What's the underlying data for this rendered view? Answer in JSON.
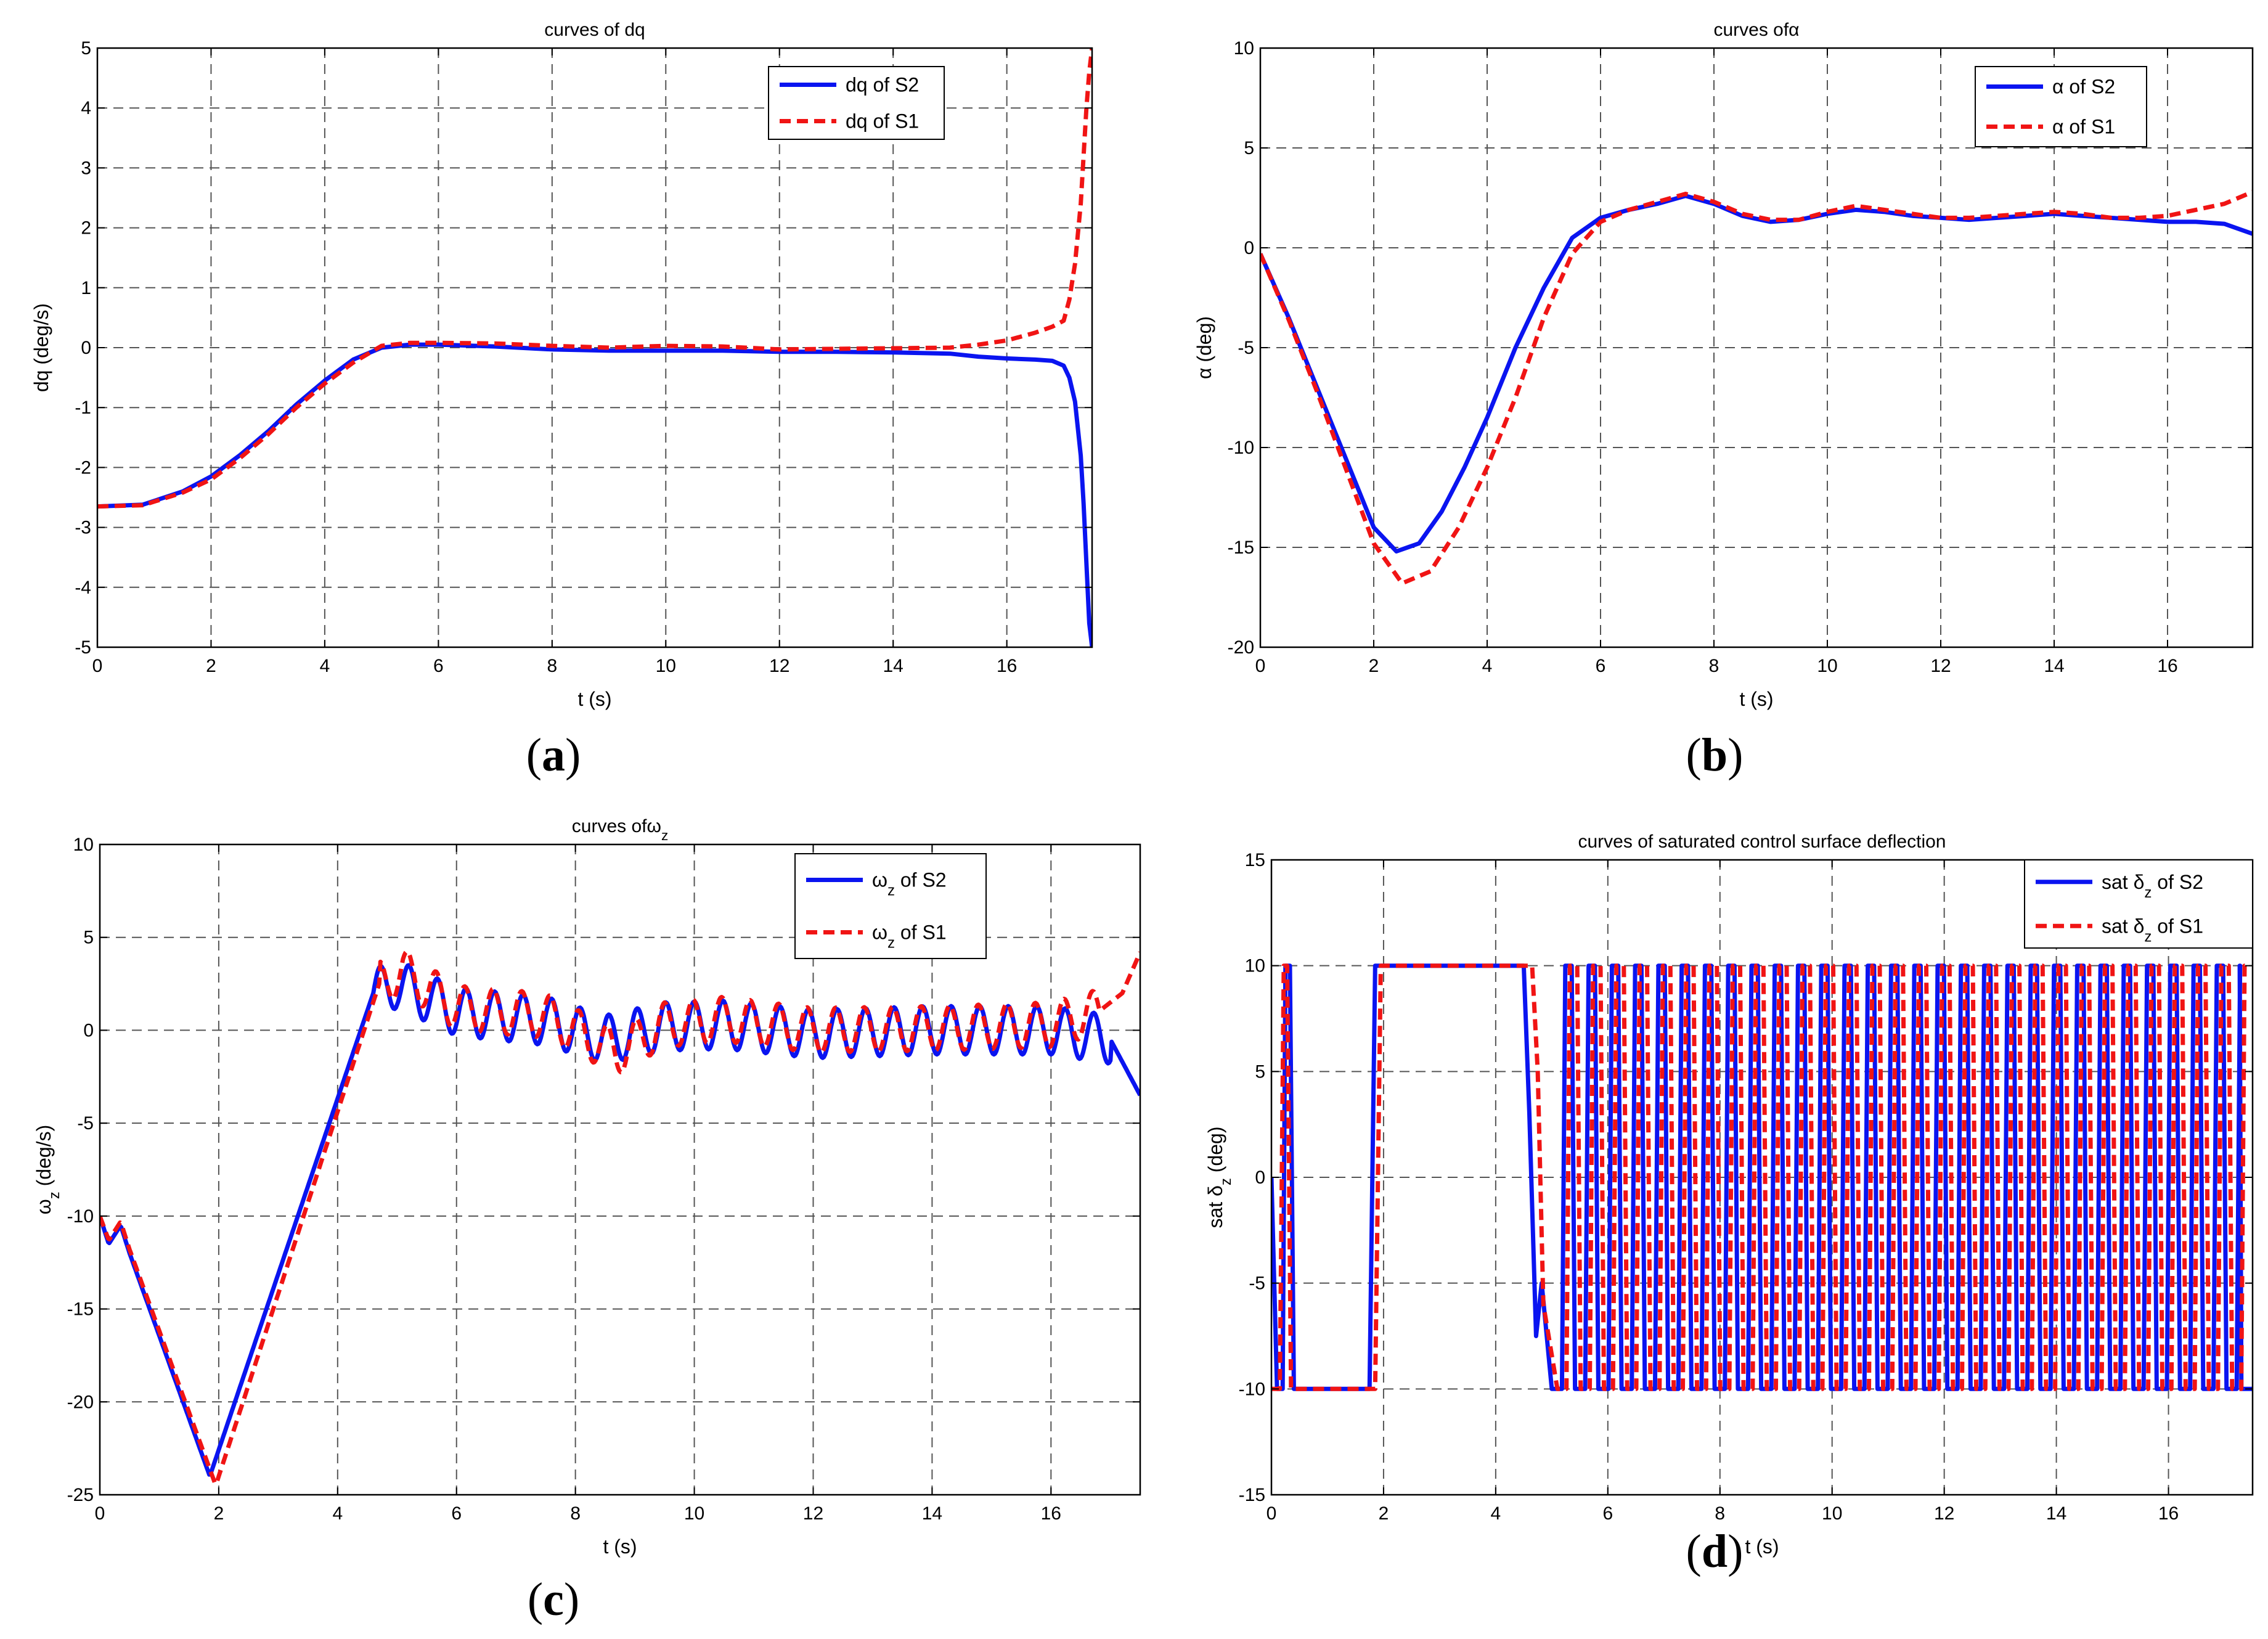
{
  "colors": {
    "s2": "#0a14f0",
    "s1": "#f01414",
    "grid": "#555555",
    "axis": "#000000"
  },
  "chart_data": [
    {
      "id": "a",
      "panel_label": "a",
      "type": "line",
      "title": "curves of dq",
      "xlabel": "t (s)",
      "ylabel": "dq (deg/s)",
      "xlim": [
        0,
        17.5
      ],
      "ylim": [
        -5,
        5
      ],
      "xticks": [
        0,
        2,
        4,
        6,
        8,
        10,
        12,
        14,
        16
      ],
      "yticks": [
        -5,
        -4,
        -3,
        -2,
        -1,
        0,
        1,
        2,
        3,
        4,
        5
      ],
      "legend_position": "top-right",
      "series": [
        {
          "name": "dq of S2",
          "style": "solid",
          "color_key": "s2",
          "x": [
            0,
            0.8,
            1.5,
            2,
            2.5,
            3,
            3.5,
            4,
            4.5,
            5,
            5.5,
            6,
            7,
            8,
            9,
            10,
            11,
            12,
            13,
            14,
            15,
            15.5,
            16,
            16.5,
            16.8,
            17,
            17.1,
            17.2,
            17.3,
            17.35,
            17.4,
            17.45,
            17.5
          ],
          "y": [
            -2.65,
            -2.62,
            -2.4,
            -2.15,
            -1.8,
            -1.4,
            -0.95,
            -0.55,
            -0.2,
            0.0,
            0.05,
            0.05,
            0.02,
            -0.03,
            -0.05,
            -0.05,
            -0.05,
            -0.07,
            -0.07,
            -0.08,
            -0.1,
            -0.15,
            -0.18,
            -0.2,
            -0.22,
            -0.3,
            -0.5,
            -0.9,
            -1.8,
            -2.6,
            -3.6,
            -4.6,
            -5
          ]
        },
        {
          "name": "dq of S1",
          "style": "dashed",
          "color_key": "s1",
          "x": [
            0,
            0.8,
            1.5,
            2,
            2.5,
            3,
            3.5,
            4,
            4.5,
            5,
            5.5,
            6,
            7,
            8,
            9,
            10,
            11,
            12,
            13,
            14,
            15,
            15.5,
            16,
            16.5,
            16.8,
            17,
            17.1,
            17.2,
            17.3,
            17.35,
            17.4,
            17.45,
            17.5
          ],
          "y": [
            -2.65,
            -2.63,
            -2.42,
            -2.2,
            -1.85,
            -1.45,
            -1.0,
            -0.6,
            -0.25,
            0.03,
            0.08,
            0.08,
            0.07,
            0.03,
            0.0,
            0.03,
            0.02,
            -0.03,
            -0.02,
            -0.01,
            0.0,
            0.05,
            0.12,
            0.25,
            0.35,
            0.45,
            0.8,
            1.4,
            2.4,
            3.2,
            4.0,
            4.6,
            5
          ]
        }
      ]
    },
    {
      "id": "b",
      "panel_label": "b",
      "type": "line",
      "title": "curves ofα",
      "xlabel": "t (s)",
      "ylabel": "α (deg)",
      "xlim": [
        0,
        17.5
      ],
      "ylim": [
        -20,
        10
      ],
      "xticks": [
        0,
        2,
        4,
        6,
        8,
        10,
        12,
        14,
        16
      ],
      "yticks": [
        -20,
        -15,
        -10,
        -5,
        0,
        5,
        10
      ],
      "legend_position": "top-right",
      "series": [
        {
          "name": "α of S2",
          "style": "solid",
          "color_key": "s2",
          "x": [
            0,
            0.5,
            1,
            1.5,
            2,
            2.4,
            2.8,
            3.2,
            3.6,
            4,
            4.5,
            5,
            5.5,
            6,
            6.5,
            7,
            7.5,
            8,
            8.5,
            9,
            9.5,
            10,
            10.5,
            11,
            11.5,
            12,
            12.5,
            13,
            13.5,
            14,
            14.5,
            15,
            15.5,
            16,
            16.5,
            17,
            17.5
          ],
          "y": [
            -0.3,
            -3.5,
            -7,
            -10.5,
            -14,
            -15.2,
            -14.8,
            -13.2,
            -11,
            -8.5,
            -5,
            -2,
            0.5,
            1.5,
            1.9,
            2.2,
            2.6,
            2.2,
            1.6,
            1.3,
            1.4,
            1.7,
            1.9,
            1.8,
            1.6,
            1.5,
            1.4,
            1.5,
            1.6,
            1.7,
            1.6,
            1.5,
            1.4,
            1.3,
            1.3,
            1.2,
            0.7
          ]
        },
        {
          "name": "α of S1",
          "style": "dashed",
          "color_key": "s1",
          "x": [
            0,
            0.5,
            1,
            1.5,
            2,
            2.5,
            3,
            3.5,
            4,
            4.5,
            5,
            5.5,
            6,
            6.5,
            7,
            7.5,
            8,
            8.5,
            9,
            9.5,
            10,
            10.5,
            11,
            11.5,
            12,
            12.5,
            13,
            13.5,
            14,
            14.5,
            15,
            15.5,
            16,
            16.5,
            17,
            17.5
          ],
          "y": [
            -0.3,
            -3.6,
            -7.2,
            -11,
            -14.8,
            -16.8,
            -16.2,
            -14,
            -11,
            -7.5,
            -3.5,
            -0.3,
            1.3,
            1.9,
            2.3,
            2.7,
            2.3,
            1.7,
            1.4,
            1.4,
            1.8,
            2.1,
            1.9,
            1.7,
            1.5,
            1.5,
            1.6,
            1.7,
            1.8,
            1.7,
            1.5,
            1.5,
            1.6,
            1.9,
            2.2,
            2.8
          ]
        }
      ]
    },
    {
      "id": "c",
      "panel_label": "c",
      "type": "line",
      "title": "curves ofω",
      "title_subscript": "z",
      "xlabel": "t (s)",
      "ylabel": "ω",
      "ylabel_subscript": "z",
      "ylabel_suffix": " (deg/s)",
      "xlim": [
        0,
        17.5
      ],
      "ylim": [
        -25,
        10
      ],
      "xticks": [
        0,
        2,
        4,
        6,
        8,
        10,
        12,
        14,
        16
      ],
      "yticks": [
        -25,
        -20,
        -15,
        -10,
        -5,
        0,
        5,
        10
      ],
      "legend_position": "top-right",
      "series": [
        {
          "name": "ω",
          "name_subscript": "z",
          "name_suffix": " of S2",
          "style": "solid",
          "color_key": "s2",
          "base_x": [
            0,
            0.15,
            0.35,
            0.5,
            1.85,
            4.6,
            5.0,
            6,
            7.5,
            8.5,
            9.5,
            10.5,
            12,
            14,
            16,
            17,
            17.5
          ],
          "base_y": [
            -10,
            -11.5,
            -10.5,
            -12,
            -24,
            2,
            2.5,
            1,
            0.5,
            -0.5,
            0.2,
            0.3,
            -0.2,
            0,
            0,
            -0.5,
            -3.5
          ],
          "osc_start": 4.6,
          "osc_end": 17.0,
          "osc_period": 0.48,
          "osc_amp": 1.3,
          "osc_phase": 0
        },
        {
          "name": "ω",
          "name_subscript": "z",
          "name_suffix": " of S1",
          "style": "dashed",
          "color_key": "s1",
          "base_x": [
            0,
            0.15,
            0.35,
            0.5,
            1.95,
            4.7,
            5.1,
            6,
            7.5,
            8.7,
            9.5,
            10.5,
            12,
            14,
            16,
            16.8,
            17.2,
            17.5
          ],
          "base_y": [
            -10,
            -11.3,
            -10.3,
            -11.8,
            -24.5,
            2.5,
            3.2,
            1.2,
            0.8,
            -1.2,
            0.3,
            0.6,
            0,
            0.1,
            0.3,
            1,
            2,
            4.2
          ],
          "osc_start": 4.7,
          "osc_end": 16.8,
          "osc_period": 0.48,
          "osc_amp": 1.2,
          "osc_phase": 1.6
        }
      ]
    },
    {
      "id": "d",
      "panel_label": "d",
      "type": "line",
      "title": "curves of saturated control surface deflection",
      "xlabel": "t (s)",
      "ylabel": "sat δ",
      "ylabel_subscript": "z",
      "ylabel_suffix": " (deg)",
      "xlim": [
        0,
        17.5
      ],
      "ylim": [
        -15,
        15
      ],
      "xticks": [
        0,
        2,
        4,
        6,
        8,
        10,
        12,
        14,
        16
      ],
      "yticks": [
        -15,
        -10,
        -5,
        0,
        5,
        10,
        15
      ],
      "legend_position": "top-right",
      "series": [
        {
          "name": "sat δ",
          "name_subscript": "z",
          "name_suffix": " of S2",
          "style": "solid",
          "color_key": "s2",
          "x": [
            0,
            0.1,
            0.2,
            0.25,
            0.33,
            0.4,
            1.75,
            1.85,
            4.5,
            4.6,
            4.72,
            4.82,
            5.0
          ],
          "y": [
            0,
            -10,
            -10,
            10,
            10,
            -10,
            -10,
            10,
            10,
            3,
            -7.5,
            -5,
            -10
          ],
          "square_start": 5.0,
          "square_end": 17.3,
          "square_period": 0.385,
          "square_duty": 0.55,
          "square_low_first": true,
          "tail_x": [
            17.3,
            17.5
          ],
          "tail_y": [
            -10,
            -10
          ]
        },
        {
          "name": "sat δ",
          "name_subscript": "z",
          "name_suffix": " of S1",
          "style": "dashed",
          "color_key": "s1",
          "x": [
            0,
            0.05,
            0.15,
            0.22,
            0.28,
            0.35,
            0.42,
            1.85,
            1.95,
            4.65,
            4.75,
            4.85,
            5.1
          ],
          "y": [
            -10,
            -10,
            -10,
            10,
            10,
            -10,
            -10,
            -10,
            10,
            10,
            5,
            -6,
            -10
          ],
          "square_start": 5.1,
          "square_end": 17.5,
          "square_period": 0.385,
          "square_duty": 0.5,
          "square_low_first": true
        }
      ]
    }
  ]
}
